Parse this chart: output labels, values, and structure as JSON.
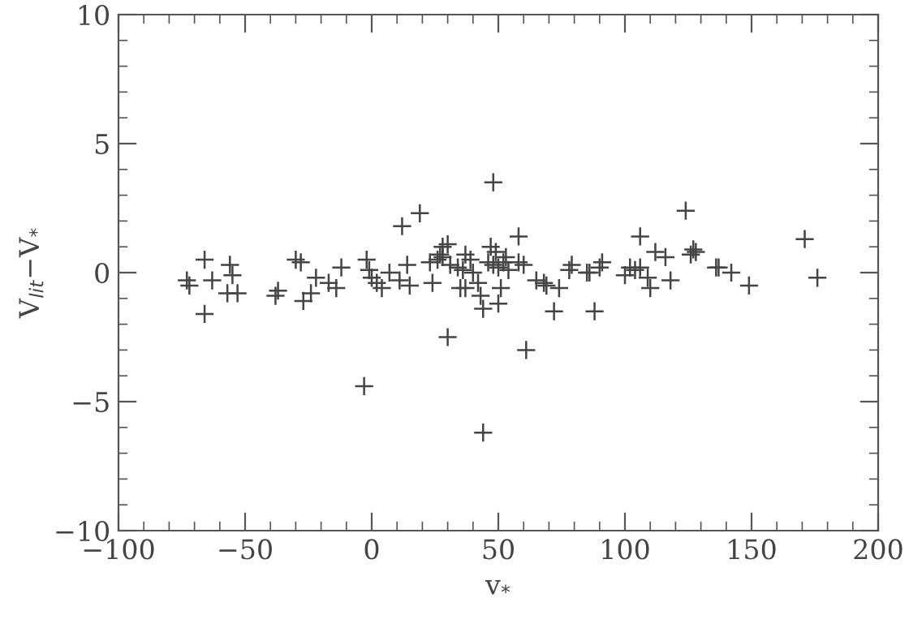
{
  "chart_data": {
    "type": "scatter",
    "xlabel": "v$_{*}$",
    "ylabel": "V$_{lit}$−V$_{*}$",
    "xlim": [
      -100,
      200
    ],
    "xticks": [
      -100,
      -50,
      0,
      50,
      100,
      150,
      200
    ],
    "ylim": [
      -10,
      10
    ],
    "yticks": [
      -10,
      -5,
      0,
      5,
      10
    ],
    "grid": false,
    "marker": "cross",
    "series": [
      {
        "color": "#444444",
        "x": [
          -73,
          -72,
          -66,
          -66,
          -63,
          -57,
          -56,
          -55,
          -53,
          -38,
          -37,
          -30,
          -28,
          -27,
          -24,
          -22,
          -17,
          -14,
          -12,
          -3,
          -2,
          -1,
          0,
          2,
          4,
          7,
          11,
          12,
          14,
          15,
          19,
          23,
          24,
          26,
          27,
          28,
          28,
          30,
          30,
          31,
          34,
          35,
          36,
          37,
          37,
          39,
          40,
          42,
          43,
          44,
          44,
          46,
          47,
          48,
          48,
          49,
          50,
          50,
          51,
          52,
          53,
          54,
          58,
          58,
          60,
          61,
          65,
          68,
          69,
          72,
          74,
          78,
          79,
          85,
          86,
          88,
          90,
          91,
          100,
          102,
          104,
          106,
          106,
          109,
          110,
          112,
          116,
          118,
          124,
          126,
          127,
          128,
          136,
          137,
          142,
          149,
          171,
          176
        ],
        "values": [
          -0.3,
          -0.5,
          0.5,
          -1.6,
          -0.3,
          -0.8,
          0.3,
          -0.1,
          -0.8,
          -0.9,
          -0.7,
          0.5,
          0.4,
          -1.1,
          -0.8,
          -0.2,
          -0.4,
          -0.6,
          0.2,
          -4.4,
          0.5,
          0.1,
          -0.2,
          -0.4,
          -0.6,
          0.0,
          -0.3,
          1.8,
          0.3,
          -0.5,
          2.3,
          0.4,
          -0.4,
          0.5,
          0.7,
          0.6,
          1.0,
          -2.5,
          1.1,
          0.3,
          0.2,
          -0.6,
          0.1,
          0.7,
          -0.6,
          0.5,
          0.0,
          -0.4,
          -0.9,
          -6.2,
          -1.4,
          0.4,
          1.0,
          3.5,
          0.3,
          0.8,
          0.2,
          -1.2,
          -0.6,
          0.4,
          0.6,
          0.1,
          1.4,
          0.4,
          0.3,
          -3.0,
          -0.3,
          -0.4,
          -0.5,
          -1.5,
          -0.6,
          0.1,
          0.3,
          0.0,
          0.0,
          -1.5,
          0.2,
          0.4,
          -0.1,
          0.2,
          0.1,
          1.4,
          0.2,
          -0.2,
          -0.6,
          0.8,
          0.6,
          -0.3,
          2.4,
          0.7,
          0.9,
          0.8,
          0.2,
          0.2,
          0.0,
          -0.5,
          1.3,
          -0.2
        ]
      }
    ]
  }
}
